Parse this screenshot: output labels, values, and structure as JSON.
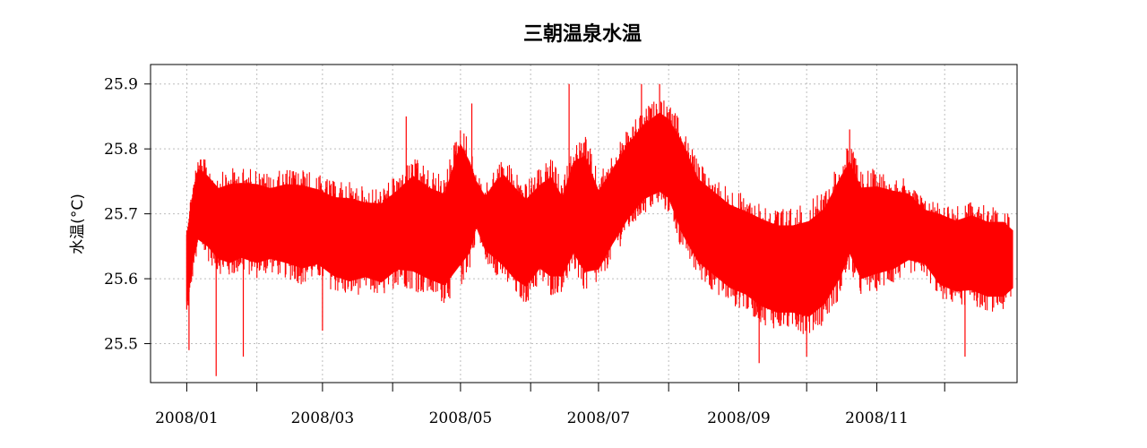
{
  "chart_data": {
    "type": "line",
    "title": "三朝温泉水温",
    "ylabel": "水温(°C)",
    "xlabel": "",
    "ylim": [
      25.44,
      25.93
    ],
    "yticks": [
      "25.5",
      "25.6",
      "25.7",
      "25.8",
      "25.9"
    ],
    "xlim": [
      "2007-12-16",
      "2009-01-02"
    ],
    "x_tick_marks": [
      "2008-01-01",
      "2008-02-01",
      "2008-03-01",
      "2008-04-01",
      "2008-05-01",
      "2008-06-01",
      "2008-07-01",
      "2008-08-01",
      "2008-09-01",
      "2008-10-01",
      "2008-11-01",
      "2008-12-01"
    ],
    "x_tick_labels": [
      {
        "date": "2008-01-01",
        "label": "2008/01"
      },
      {
        "date": "2008-03-01",
        "label": "2008/03"
      },
      {
        "date": "2008-05-01",
        "label": "2008/05"
      },
      {
        "date": "2008-07-01",
        "label": "2008/07"
      },
      {
        "date": "2008-09-01",
        "label": "2008/09"
      },
      {
        "date": "2008-11-01",
        "label": "2008/11"
      }
    ],
    "grid": true,
    "line_color": "#ff0000",
    "series": [
      {
        "x": [
          "2008-01-01",
          "2008-01-04",
          "2008-01-06",
          "2008-01-10",
          "2008-01-15",
          "2008-01-20",
          "2008-01-25",
          "2008-02-01",
          "2008-02-07",
          "2008-02-14",
          "2008-02-21",
          "2008-02-28",
          "2008-03-06",
          "2008-03-13",
          "2008-03-20",
          "2008-03-27",
          "2008-04-03",
          "2008-04-10",
          "2008-04-17",
          "2008-04-24",
          "2008-05-01",
          "2008-05-05",
          "2008-05-08",
          "2008-05-12",
          "2008-05-16",
          "2008-05-20",
          "2008-05-25",
          "2008-05-30",
          "2008-06-05",
          "2008-06-10",
          "2008-06-15",
          "2008-06-20",
          "2008-06-25",
          "2008-07-01",
          "2008-07-07",
          "2008-07-14",
          "2008-07-21",
          "2008-07-28",
          "2008-08-01",
          "2008-08-07",
          "2008-08-14",
          "2008-08-21",
          "2008-08-28",
          "2008-09-04",
          "2008-09-11",
          "2008-09-18",
          "2008-09-25",
          "2008-10-02",
          "2008-10-09",
          "2008-10-16",
          "2008-10-20",
          "2008-10-25",
          "2008-11-01",
          "2008-11-08",
          "2008-11-15",
          "2008-11-22",
          "2008-11-29",
          "2008-12-06",
          "2008-12-13",
          "2008-12-20",
          "2008-12-27",
          "2008-12-31"
        ],
        "min": [
          25.52,
          25.6,
          25.63,
          25.62,
          25.6,
          25.59,
          25.6,
          25.59,
          25.6,
          25.59,
          25.58,
          25.59,
          25.57,
          25.56,
          25.57,
          25.56,
          25.58,
          25.57,
          25.56,
          25.55,
          25.57,
          25.6,
          25.66,
          25.62,
          25.6,
          25.58,
          25.56,
          25.55,
          25.58,
          25.56,
          25.57,
          25.6,
          25.56,
          25.58,
          25.62,
          25.66,
          25.69,
          25.7,
          25.69,
          25.63,
          25.59,
          25.57,
          25.55,
          25.54,
          25.52,
          25.51,
          25.51,
          25.5,
          25.52,
          25.56,
          25.6,
          25.56,
          25.57,
          25.58,
          25.6,
          25.6,
          25.56,
          25.55,
          25.55,
          25.54,
          25.54,
          25.56
        ],
        "max": [
          25.7,
          25.77,
          25.8,
          25.79,
          25.77,
          25.78,
          25.78,
          25.78,
          25.77,
          25.78,
          25.78,
          25.77,
          25.76,
          25.76,
          25.75,
          25.75,
          25.77,
          25.8,
          25.78,
          25.77,
          25.86,
          25.82,
          25.77,
          25.75,
          25.78,
          25.8,
          25.78,
          25.76,
          25.78,
          25.8,
          25.76,
          25.82,
          25.84,
          25.77,
          25.8,
          25.84,
          25.87,
          25.89,
          25.88,
          25.85,
          25.79,
          25.77,
          25.75,
          25.74,
          25.73,
          25.72,
          25.72,
          25.73,
          25.75,
          25.8,
          25.82,
          25.78,
          25.78,
          25.77,
          25.76,
          25.73,
          25.73,
          25.72,
          25.73,
          25.72,
          25.72,
          25.7
        ],
        "spikes_low": [
          {
            "x": "2008-01-02",
            "y": 25.49
          },
          {
            "x": "2008-01-14",
            "y": 25.45
          },
          {
            "x": "2008-01-26",
            "y": 25.48
          },
          {
            "x": "2008-03-01",
            "y": 25.52
          },
          {
            "x": "2008-09-10",
            "y": 25.47
          },
          {
            "x": "2008-10-01",
            "y": 25.48
          },
          {
            "x": "2008-12-10",
            "y": 25.48
          }
        ],
        "spikes_high": [
          {
            "x": "2008-04-07",
            "y": 25.85
          },
          {
            "x": "2008-05-06",
            "y": 25.87
          },
          {
            "x": "2008-06-18",
            "y": 25.9
          },
          {
            "x": "2008-07-20",
            "y": 25.9
          },
          {
            "x": "2008-07-28",
            "y": 25.9
          },
          {
            "x": "2008-10-20",
            "y": 25.83
          }
        ]
      }
    ]
  }
}
